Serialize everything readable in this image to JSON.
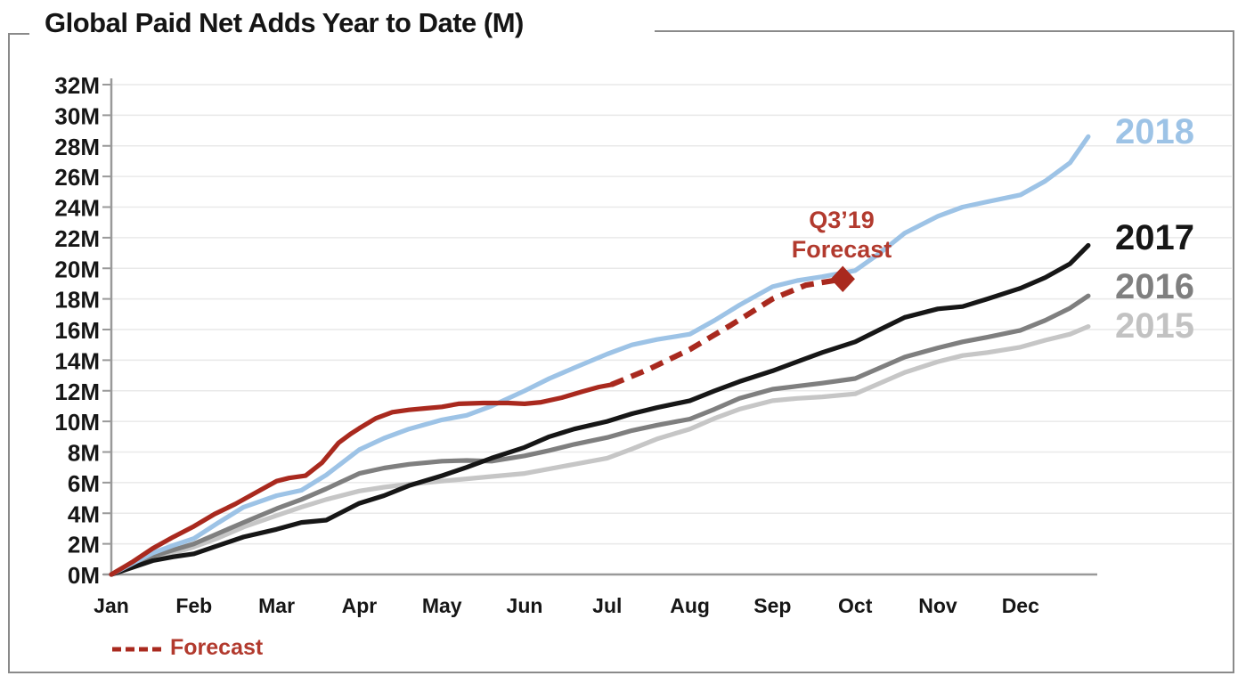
{
  "title": "Global Paid Net Adds Year to Date (M)",
  "annotation": {
    "line1": "Q3’19",
    "line2": "Forecast"
  },
  "legend": {
    "label": "Forecast",
    "style": "dashed"
  },
  "right_labels": [
    {
      "text": "2018",
      "color": "#9DC3E6"
    },
    {
      "text": "2017",
      "color": "#161616"
    },
    {
      "text": "2016",
      "color": "#7F7F7F"
    },
    {
      "text": "2015",
      "color": "#C2C2C2"
    }
  ],
  "colors": {
    "red_2019": "#A9291E",
    "red_text": "#B23A2E",
    "blue_2018": "#9DC3E6",
    "black_2017": "#161616",
    "gray_2016": "#7F7F7F",
    "lightgray_2015": "#C6C6C6",
    "gridline": "#E9E9E9",
    "axis": "#999999",
    "frame": "#8A8A8A"
  },
  "chart_data": {
    "type": "line",
    "title": "Global Paid Net Adds Year to Date (M)",
    "x_axis": {
      "unit": "month",
      "labels": [
        "Jan",
        "Feb",
        "Mar",
        "Apr",
        "May",
        "Jun",
        "Jul",
        "Aug",
        "Sep",
        "Oct",
        "Nov",
        "Dec"
      ]
    },
    "y_axis": {
      "min": 0,
      "max": 32,
      "step": 2,
      "suffix": "M"
    },
    "grid": true,
    "legend_position": "bottom-left",
    "series": [
      {
        "name": "2015",
        "color": "#C6C6C6",
        "style": "solid",
        "x": [
          0,
          0.25,
          0.5,
          0.75,
          1,
          1.3,
          1.6,
          2,
          2.3,
          2.6,
          3,
          3.3,
          3.6,
          4,
          4.3,
          4.6,
          5,
          5.3,
          5.6,
          6,
          6.3,
          6.6,
          7,
          7.3,
          7.6,
          8,
          8.3,
          8.6,
          9,
          9.3,
          9.6,
          10,
          10.3,
          10.6,
          11,
          11.3,
          11.6,
          11.82
        ],
        "values": [
          0,
          0.5,
          1.0,
          1.4,
          1.8,
          2.4,
          3.1,
          3.85,
          4.4,
          4.9,
          5.45,
          5.7,
          5.9,
          6.1,
          6.25,
          6.4,
          6.6,
          6.9,
          7.2,
          7.6,
          8.2,
          8.85,
          9.5,
          10.2,
          10.8,
          11.35,
          11.5,
          11.6,
          11.8,
          12.5,
          13.2,
          13.9,
          14.3,
          14.5,
          14.85,
          15.3,
          15.7,
          16.2
        ]
      },
      {
        "name": "2016",
        "color": "#7F7F7F",
        "style": "solid",
        "x": [
          0,
          0.25,
          0.5,
          0.75,
          1,
          1.3,
          1.6,
          2,
          2.3,
          2.6,
          3,
          3.3,
          3.6,
          4,
          4.3,
          4.6,
          5,
          5.3,
          5.6,
          6,
          6.3,
          6.6,
          7,
          7.3,
          7.6,
          8,
          8.3,
          8.6,
          9,
          9.3,
          9.6,
          10,
          10.3,
          10.6,
          11,
          11.3,
          11.6,
          11.82
        ],
        "values": [
          0,
          0.6,
          1.2,
          1.6,
          2.0,
          2.7,
          3.4,
          4.3,
          4.9,
          5.6,
          6.6,
          6.95,
          7.2,
          7.4,
          7.45,
          7.4,
          7.75,
          8.1,
          8.5,
          8.95,
          9.4,
          9.75,
          10.15,
          10.8,
          11.5,
          12.1,
          12.3,
          12.5,
          12.8,
          13.5,
          14.2,
          14.8,
          15.2,
          15.5,
          15.95,
          16.6,
          17.4,
          18.2
        ]
      },
      {
        "name": "2017",
        "color": "#161616",
        "style": "solid",
        "x": [
          0,
          0.25,
          0.5,
          0.75,
          1,
          1.3,
          1.6,
          2,
          2.3,
          2.6,
          3,
          3.3,
          3.6,
          4,
          4.3,
          4.6,
          5,
          5.3,
          5.6,
          6,
          6.3,
          6.6,
          7,
          7.3,
          7.6,
          8,
          8.3,
          8.6,
          9,
          9.3,
          9.6,
          10,
          10.3,
          10.6,
          11,
          11.3,
          11.6,
          11.82
        ],
        "values": [
          0,
          0.45,
          0.9,
          1.15,
          1.35,
          1.9,
          2.45,
          2.95,
          3.4,
          3.55,
          4.65,
          5.15,
          5.8,
          6.45,
          7.0,
          7.6,
          8.3,
          9.0,
          9.5,
          10.0,
          10.5,
          10.9,
          11.35,
          12.0,
          12.6,
          13.3,
          13.9,
          14.5,
          15.2,
          16.0,
          16.8,
          17.35,
          17.5,
          18.0,
          18.7,
          19.4,
          20.3,
          21.5
        ]
      },
      {
        "name": "2018",
        "color": "#9DC3E6",
        "style": "solid",
        "x": [
          0,
          0.25,
          0.5,
          0.75,
          1,
          1.3,
          1.6,
          2,
          2.3,
          2.6,
          3,
          3.3,
          3.6,
          4,
          4.3,
          4.6,
          5,
          5.3,
          5.6,
          6,
          6.3,
          6.6,
          7,
          7.3,
          7.6,
          8,
          8.3,
          8.6,
          9,
          9.3,
          9.6,
          10,
          10.3,
          10.6,
          11,
          11.3,
          11.6,
          11.82
        ],
        "values": [
          0,
          0.7,
          1.4,
          1.9,
          2.35,
          3.4,
          4.4,
          5.15,
          5.5,
          6.5,
          8.15,
          8.9,
          9.5,
          10.1,
          10.4,
          11.0,
          12.0,
          12.8,
          13.5,
          14.4,
          15.0,
          15.35,
          15.7,
          16.6,
          17.6,
          18.8,
          19.2,
          19.45,
          19.85,
          21.0,
          22.3,
          23.4,
          24.0,
          24.35,
          24.8,
          25.7,
          26.9,
          28.6
        ]
      },
      {
        "name": "2019 actual",
        "color": "#A9291E",
        "style": "solid",
        "x": [
          0,
          0.25,
          0.5,
          0.75,
          1,
          1.25,
          1.5,
          1.75,
          2,
          2.15,
          2.35,
          2.55,
          2.75,
          2.9,
          3,
          3.2,
          3.4,
          3.6,
          3.8,
          4,
          4.2,
          4.5,
          4.8,
          5,
          5.2,
          5.45,
          5.7,
          5.9,
          6.05
        ],
        "values": [
          0,
          0.8,
          1.7,
          2.45,
          3.15,
          3.95,
          4.6,
          5.35,
          6.1,
          6.3,
          6.45,
          7.3,
          8.6,
          9.2,
          9.55,
          10.2,
          10.6,
          10.75,
          10.85,
          10.95,
          11.15,
          11.2,
          11.2,
          11.15,
          11.25,
          11.55,
          11.95,
          12.25,
          12.4
        ]
      },
      {
        "name": "2019 forecast",
        "color": "#A9291E",
        "style": "dashed",
        "x": [
          6.05,
          6.5,
          7,
          7.5,
          8,
          8.4,
          8.85
        ],
        "values": [
          12.4,
          13.4,
          14.7,
          16.3,
          18.0,
          18.9,
          19.3
        ]
      }
    ],
    "forecast_marker": {
      "x_month": 8.85,
      "value": 19.3,
      "shape": "diamond",
      "label": "Q3’19 Forecast"
    }
  }
}
